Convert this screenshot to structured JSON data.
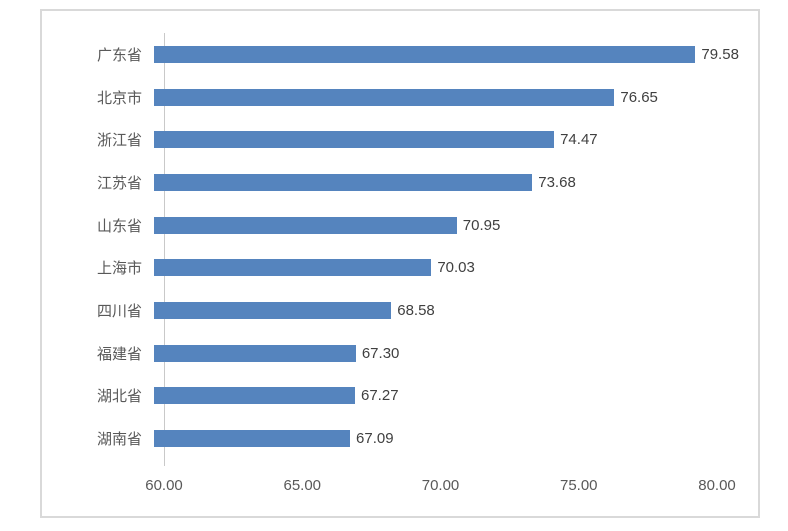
{
  "chart_data": {
    "type": "bar",
    "orientation": "horizontal",
    "title": "",
    "xlabel": "",
    "ylabel": "",
    "categories": [
      "广东省",
      "北京市",
      "浙江省",
      "江苏省",
      "山东省",
      "上海市",
      "四川省",
      "福建省",
      "湖北省",
      "湖南省"
    ],
    "values": [
      79.58,
      76.65,
      74.47,
      73.68,
      70.95,
      70.03,
      68.58,
      67.3,
      67.27,
      67.09
    ],
    "value_labels": [
      "79.58",
      "76.65",
      "74.47",
      "73.68",
      "70.95",
      "70.03",
      "68.58",
      "67.30",
      "67.27",
      "67.09"
    ],
    "x_axis": {
      "min": 60,
      "tick_values": [
        60,
        65,
        70,
        75,
        80
      ],
      "tick_labels": [
        "60.00",
        "65.00",
        "70.00",
        "75.00",
        "80.00"
      ]
    },
    "grid": false,
    "legend": false,
    "bar_color": "#5584be",
    "axis_line_color": "#c9c9c9",
    "category_label_color": "#595959",
    "value_label_color": "#404040",
    "panel_border_color": "#d9d9d9"
  }
}
